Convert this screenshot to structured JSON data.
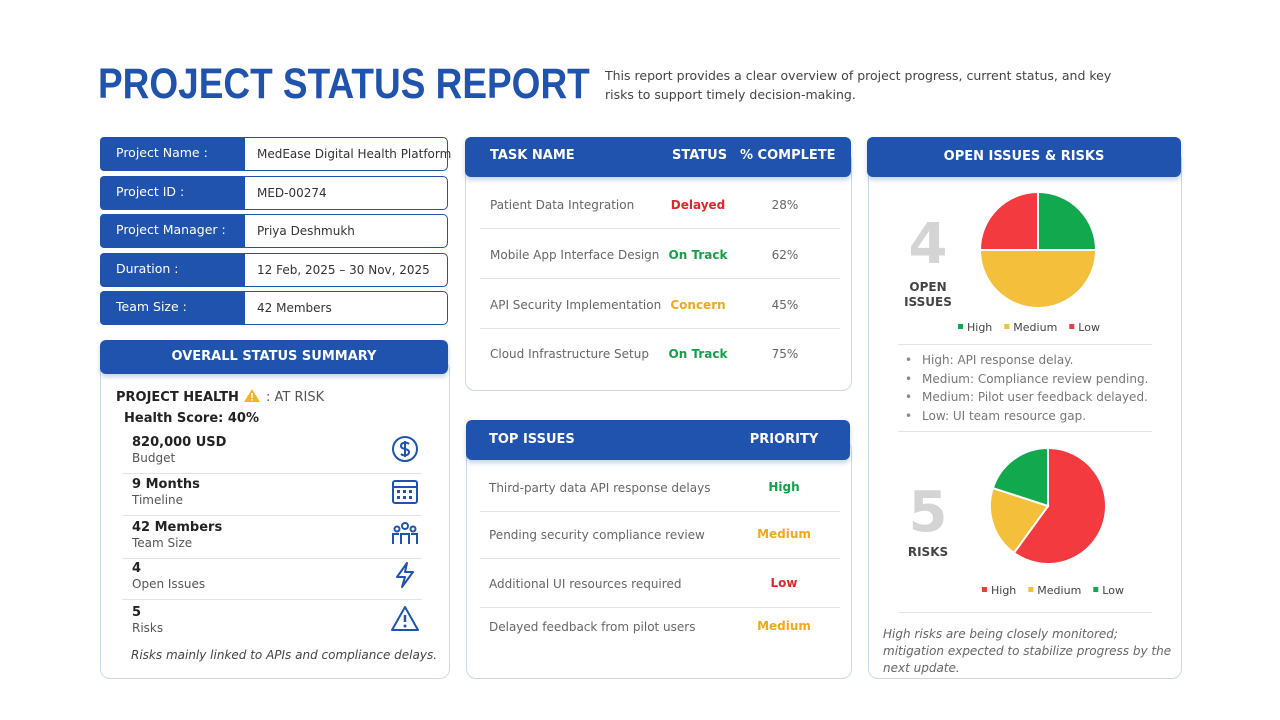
{
  "header": {
    "title": "PROJECT STATUS REPORT",
    "description": "This report provides a clear overview of project progress, current status, and key risks to support timely decision-making."
  },
  "project_info": [
    {
      "label": "Project Name :",
      "value": "MedEase Digital Health Platform"
    },
    {
      "label": "Project ID :",
      "value": "MED-00274"
    },
    {
      "label": "Project Manager :",
      "value": "Priya Deshmukh"
    },
    {
      "label": "Duration :",
      "value": "12 Feb, 2025 – 30 Nov, 2025"
    },
    {
      "label": "Team Size :",
      "value": "42 Members"
    }
  ],
  "summary": {
    "title": "OVERALL STATUS SUMMARY",
    "health_label": "PROJECT HEALTH",
    "health_status": ": AT RISK",
    "health_score": "Health Score: 40%",
    "metrics": [
      {
        "value": "820,000 USD",
        "label": "Budget"
      },
      {
        "value": "9 Months",
        "label": "Timeline"
      },
      {
        "value": "42 Members",
        "label": "Team Size"
      },
      {
        "value": "4",
        "label": "Open Issues"
      },
      {
        "value": "5",
        "label": "Risks"
      }
    ],
    "note": "Risks mainly linked to APIs and compliance delays."
  },
  "tasks": {
    "headers": [
      "TASK NAME",
      "STATUS",
      "% COMPLETE"
    ],
    "rows": [
      {
        "task": "Patient Data Integration",
        "status": "Delayed",
        "status_color": "#e3262c",
        "complete": "28%"
      },
      {
        "task": "Mobile App Interface Design",
        "status": "On Track",
        "status_color": "#13a04a",
        "complete": "62%"
      },
      {
        "task": "API Security Implementation",
        "status": "Concern",
        "status_color": "#f2a81d",
        "complete": "45%"
      },
      {
        "task": "Cloud Infrastructure Setup",
        "status": "On Track",
        "status_color": "#13a04a",
        "complete": "75%"
      }
    ]
  },
  "top_issues": {
    "headers": [
      "TOP ISSUES",
      "PRIORITY"
    ],
    "rows": [
      {
        "issue": "Third-party data API response delays",
        "priority": "High",
        "priority_color": "#13a04a"
      },
      {
        "issue": "Pending security compliance review",
        "priority": "Medium",
        "priority_color": "#f2a81d"
      },
      {
        "issue": "Additional UI resources required",
        "priority": "Low",
        "priority_color": "#e3262c"
      },
      {
        "issue": "Delayed feedback from pilot users",
        "priority": "Medium",
        "priority_color": "#f2a81d"
      }
    ]
  },
  "issues_risks": {
    "title": "OPEN ISSUES & RISKS",
    "open_issues_count": "4",
    "open_issues_label": "OPEN ISSUES",
    "issue_notes": [
      "High: API response delay.",
      "Medium: Compliance review pending.",
      "Medium: Pilot user feedback delayed.",
      "Low: UI team resource gap."
    ],
    "risks_count": "5",
    "risks_label": "RISKS",
    "footnote": "High risks are being closely monitored; mitigation expected to stabilize progress by the next update."
  },
  "chart_data": [
    {
      "type": "pie",
      "categories": [
        "High",
        "Medium",
        "Low"
      ],
      "values": [
        1,
        2,
        1
      ],
      "colors": [
        "#12a84e",
        "#f4bf3a",
        "#f23a3f"
      ]
    },
    {
      "type": "pie",
      "categories": [
        "High",
        "Medium",
        "Low"
      ],
      "values": [
        3,
        1,
        1
      ],
      "colors": [
        "#f23a3f",
        "#f4bf3a",
        "#12a84e"
      ]
    }
  ]
}
